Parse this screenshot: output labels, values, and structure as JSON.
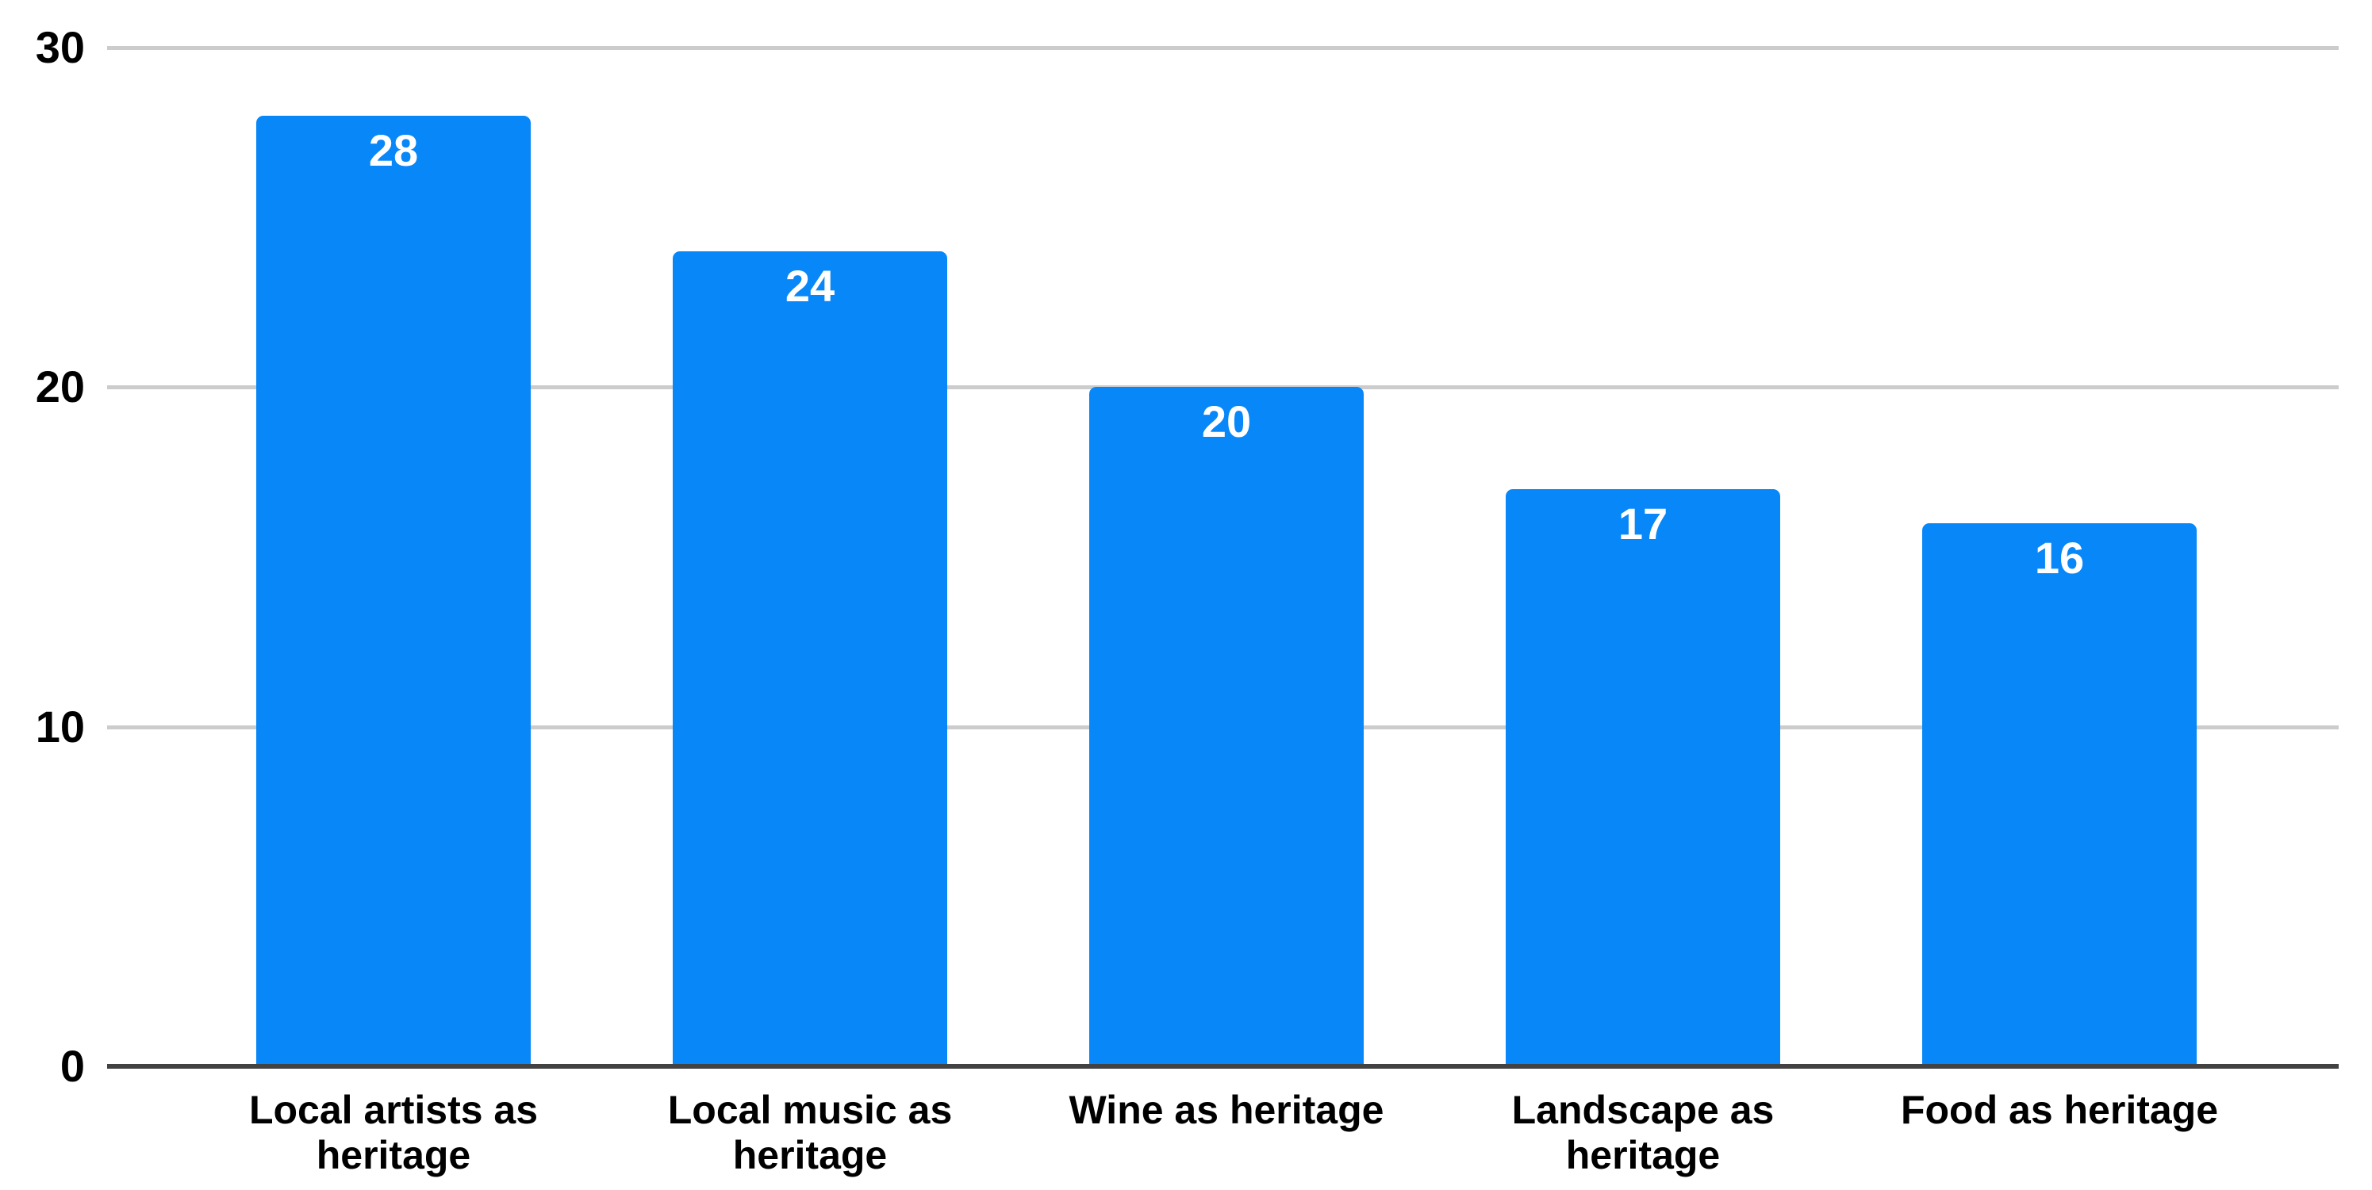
{
  "chart_data": {
    "type": "bar",
    "title": "",
    "xlabel": "",
    "ylabel": "",
    "categories": [
      "Local artists as heritage",
      "Local music as heritage",
      "Wine as heritage",
      "Landscape as heritage",
      "Food as heritage"
    ],
    "category_lines": [
      [
        "Local artists as",
        "heritage"
      ],
      [
        "Local music as",
        "heritage"
      ],
      [
        "Wine as heritage"
      ],
      [
        "Landscape as",
        "heritage"
      ],
      [
        "Food as heritage"
      ]
    ],
    "values": [
      28,
      24,
      20,
      17,
      16
    ],
    "value_labels": [
      "28",
      "24",
      "20",
      "17",
      "16"
    ],
    "ylim": [
      0,
      30
    ],
    "yticks": [
      0,
      10,
      20,
      30
    ],
    "ytick_labels": [
      "0",
      "10",
      "20",
      "30"
    ],
    "grid": true,
    "legend": "none",
    "colors": {
      "bar": "#0787f8",
      "gridline": "#cccccc",
      "axis_line": "#424242",
      "tick_text": "#000000",
      "value_text": "#ffffff",
      "background": "#ffffff"
    }
  }
}
